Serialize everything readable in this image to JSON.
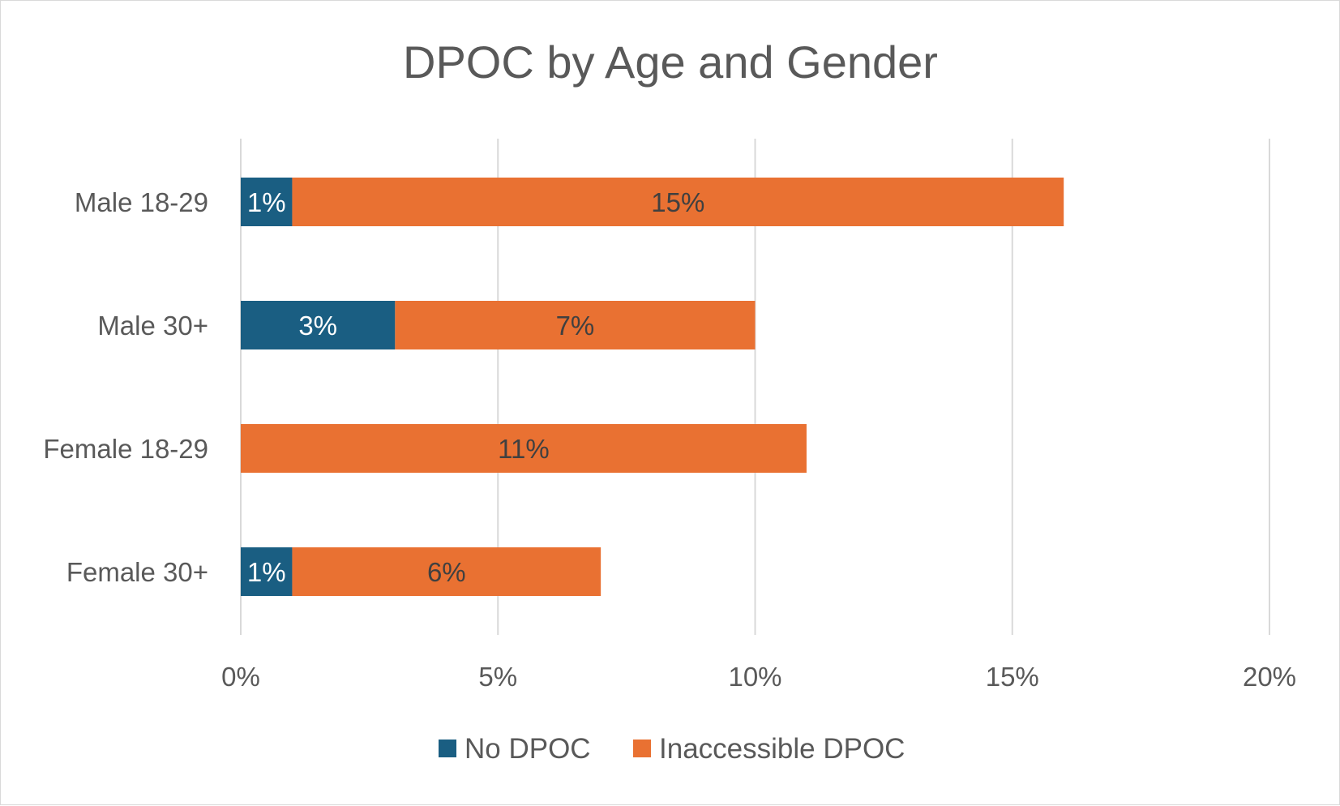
{
  "chart_data": {
    "type": "bar",
    "orientation": "horizontal",
    "stacked": true,
    "title": "DPOC by Age and Gender",
    "categories": [
      "Male 18-29",
      "Male 30+",
      "Female 18-29",
      "Female 30+"
    ],
    "series": [
      {
        "name": "No DPOC",
        "color": "#1a5e82",
        "values": [
          1,
          3,
          0,
          1
        ],
        "labels": [
          "1%",
          "3%",
          "",
          "1%"
        ]
      },
      {
        "name": "Inaccessible DPOC",
        "color": "#e97132",
        "values": [
          15,
          7,
          11,
          6
        ],
        "labels": [
          "15%",
          "7%",
          "11%",
          "6%"
        ]
      }
    ],
    "xlim": [
      0,
      20
    ],
    "xticks": [
      0,
      5,
      10,
      15,
      20
    ],
    "xtick_labels": [
      "0%",
      "5%",
      "10%",
      "15%",
      "20%"
    ],
    "grid": true,
    "legend": "bottom"
  }
}
